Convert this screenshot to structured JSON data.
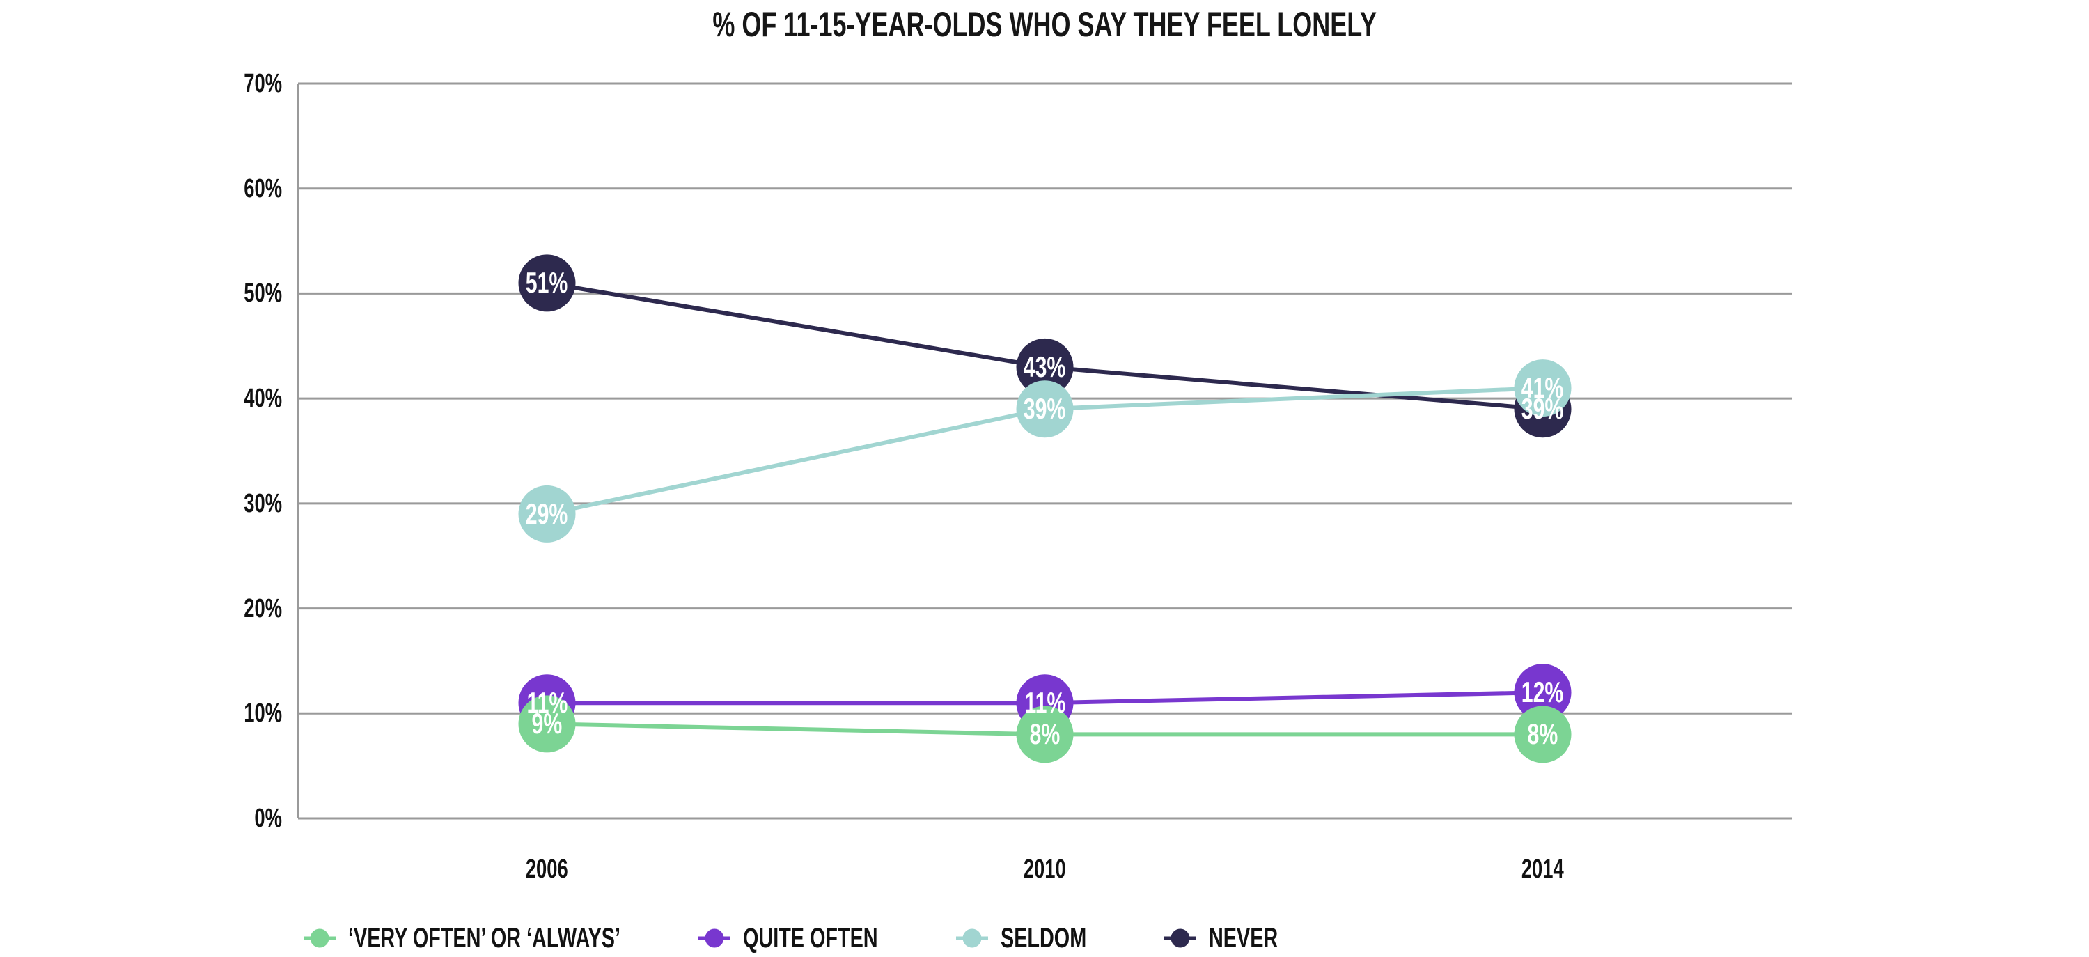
{
  "title": "% OF 11-15-YEAR-OLDS WHO SAY THEY FEEL LONELY",
  "chart_data": {
    "type": "line",
    "title": "% OF 11-15-YEAR-OLDS WHO SAY THEY FEEL LONELY",
    "categories": [
      "2006",
      "2010",
      "2014"
    ],
    "series": [
      {
        "name": "NEVER",
        "color": "#2d294e",
        "values": [
          51,
          43,
          39
        ],
        "point_labels": [
          "51%",
          "43%",
          "39%"
        ]
      },
      {
        "name": "SELDOM",
        "color": "#a1d5d1",
        "values": [
          29,
          39,
          41
        ],
        "point_labels": [
          "29%",
          "39%",
          "41%"
        ]
      },
      {
        "name": "QUITE OFTEN",
        "color": "#7837cf",
        "values": [
          11,
          11,
          12
        ],
        "point_labels": [
          "11%",
          "11%",
          "12%"
        ]
      },
      {
        "name": "‘VERY OFTEN’ OR ‘ALWAYS’",
        "color": "#7cd494",
        "values": [
          9,
          8,
          8
        ],
        "point_labels": [
          "9%",
          "8%",
          "8%"
        ]
      }
    ],
    "legend_order": [
      3,
      2,
      1,
      0
    ],
    "ylim": [
      0,
      70
    ],
    "yticks": [
      "0%",
      "10%",
      "20%",
      "30%",
      "40%",
      "50%",
      "60%",
      "70%"
    ],
    "grid": true,
    "grid_color": "#9a9a9a",
    "legend_position": "bottom-left",
    "text_color": "#161616",
    "value_label_color": "#ffffff",
    "background": "#ffffff"
  }
}
